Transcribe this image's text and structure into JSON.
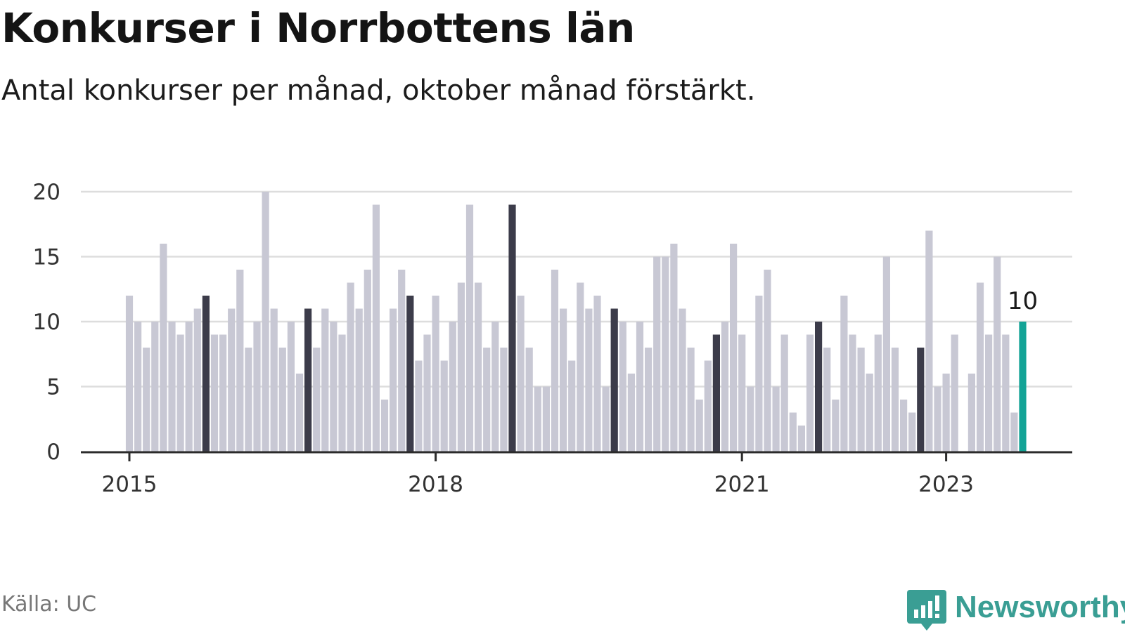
{
  "header": {
    "title": "Konkurser i Norrbottens län",
    "subtitle": "Antal konkurser per månad, oktober månad förstärkt."
  },
  "footer": {
    "source": "Källa: UC",
    "brand": "Newsworthy"
  },
  "colors": {
    "bar_default": "#c8c8d4",
    "bar_october": "#3c3c4a",
    "bar_latest": "#13a396",
    "grid": "#dddddd",
    "axis": "#2b2b2b",
    "brand": "#3a9e94"
  },
  "chart_data": {
    "type": "bar",
    "title": "Konkurser i Norrbottens län",
    "subtitle": "Antal konkurser per månad, oktober månad förstärkt.",
    "xlabel": "",
    "ylabel": "",
    "start": "2015-01",
    "ylim": [
      0,
      20
    ],
    "yticks": [
      0,
      5,
      10,
      15,
      20
    ],
    "xticks": [
      {
        "label": "2015",
        "month": "2015-01"
      },
      {
        "label": "2018",
        "month": "2018-01"
      },
      {
        "label": "2021",
        "month": "2021-01"
      },
      {
        "label": "2023",
        "month": "2023-01"
      }
    ],
    "grid": true,
    "highlight": "October",
    "values": [
      12,
      10,
      8,
      10,
      16,
      10,
      9,
      10,
      11,
      12,
      9,
      9,
      11,
      14,
      8,
      10,
      20,
      11,
      8,
      10,
      6,
      11,
      8,
      11,
      10,
      9,
      13,
      11,
      14,
      19,
      4,
      11,
      14,
      12,
      7,
      9,
      12,
      7,
      10,
      13,
      19,
      13,
      8,
      10,
      8,
      19,
      12,
      8,
      5,
      5,
      14,
      11,
      7,
      13,
      11,
      12,
      5,
      11,
      10,
      6,
      10,
      8,
      15,
      15,
      16,
      11,
      8,
      4,
      7,
      9,
      10,
      16,
      9,
      5,
      12,
      14,
      5,
      9,
      3,
      2,
      9,
      10,
      8,
      4,
      12,
      9,
      8,
      6,
      9,
      15,
      8,
      4,
      3,
      8,
      17,
      5,
      6,
      9,
      0,
      6,
      13,
      9,
      15,
      9,
      3,
      10
    ],
    "latest_label": "10"
  }
}
